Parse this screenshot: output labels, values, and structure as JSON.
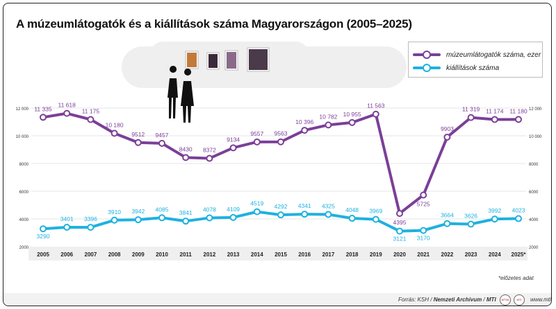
{
  "title": "A múzeumlátogatók és a kiállítások száma Magyarországon (2005–2025)",
  "legend": {
    "visitors": "múzeumlátogatók száma, ezer",
    "exhibitions": "kiállítások száma"
  },
  "footnote": "*előzetes adat",
  "source": {
    "prefix": "Forrás: KSH /",
    "archive": "Nemzeti Archívum",
    "sep": "/",
    "mti": "MTI"
  },
  "url": "www.mti.hu",
  "logos": [
    "MTVA",
    "MTI"
  ],
  "colors": {
    "visitors": "#7b3f98",
    "exhibitions": "#1eb1e0",
    "band": "#efefef"
  },
  "chart_data": {
    "type": "line",
    "title": "A múzeumlátogatók és a kiállítások száma Magyarországon (2005–2025)",
    "categories": [
      "2005",
      "2006",
      "2007",
      "2008",
      "2009",
      "2010",
      "2011",
      "2012",
      "2013",
      "2014",
      "2015",
      "2016",
      "2017",
      "2018",
      "2019",
      "2020",
      "2021",
      "2022",
      "2023",
      "2024",
      "2025*"
    ],
    "series": [
      {
        "name": "múzeumlátogatók száma, ezer",
        "values": [
          11335,
          11618,
          11175,
          10180,
          9512,
          9457,
          8430,
          8372,
          9134,
          9557,
          9563,
          10396,
          10782,
          10955,
          11563,
          4395,
          5725,
          9903,
          11319,
          11174,
          11180
        ],
        "labels": [
          "11 335",
          "11 618",
          "11 175",
          "10 180",
          "9512",
          "9457",
          "8430",
          "8372",
          "9134",
          "9557",
          "9563",
          "10 396",
          "10 782",
          "10 955",
          "11 563",
          "4395",
          "5725",
          "9903",
          "11 319",
          "11 174",
          "11 180"
        ]
      },
      {
        "name": "kiállítások száma",
        "values": [
          3290,
          3401,
          3396,
          3910,
          3942,
          4085,
          3841,
          4078,
          4109,
          4519,
          4292,
          4341,
          4325,
          4048,
          3969,
          3121,
          3170,
          3664,
          3626,
          3992,
          4023
        ],
        "labels": [
          "3290",
          "3401",
          "3396",
          "3910",
          "3942",
          "4085",
          "3841",
          "4078",
          "4109",
          "4519",
          "4292",
          "4341",
          "4325",
          "4048",
          "3969",
          "3121",
          "3170",
          "3664",
          "3626",
          "3992",
          "4023"
        ]
      }
    ],
    "yticks": [
      2000,
      4000,
      6000,
      8000,
      10000,
      12000
    ],
    "ytick_labels": [
      "2000",
      "4000",
      "6000",
      "8000",
      "10 000",
      "12 000"
    ],
    "ylim": [
      2000,
      12000
    ],
    "xlabel": "",
    "ylabel": "",
    "grid": true
  }
}
